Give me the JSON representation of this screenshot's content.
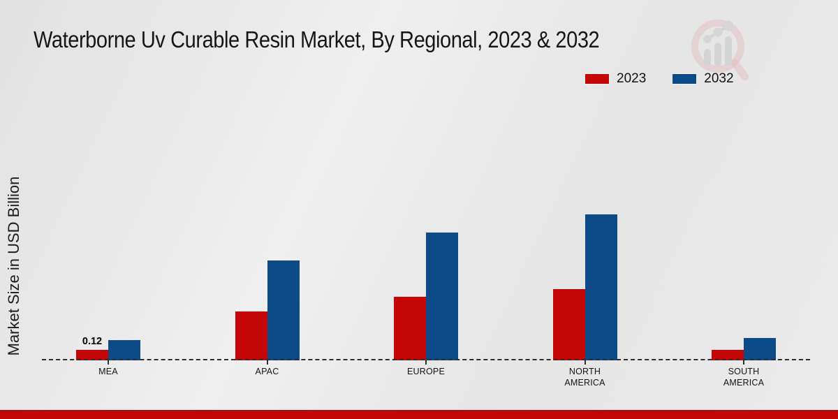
{
  "chart_data": {
    "type": "bar",
    "title": "Waterborne Uv Curable Resin Market, By Regional, 2023 & 2032",
    "ylabel": "Market Size in USD Billion",
    "xlabel": "",
    "categories": [
      "MEA",
      "APAC",
      "EUROPE",
      "NORTH AMERICA",
      "SOUTH AMERICA"
    ],
    "series": [
      {
        "name": "2023",
        "color": "#c40606",
        "values": [
          0.12,
          0.55,
          0.71,
          0.8,
          0.12
        ]
      },
      {
        "name": "2032",
        "color": "#0d4a88",
        "values": [
          0.23,
          1.12,
          1.43,
          1.63,
          0.25
        ]
      }
    ],
    "value_labels": [
      {
        "category_index": 0,
        "series_index": 0,
        "text": "0.12"
      }
    ],
    "ylim": [
      0,
      2.8
    ],
    "grid": false,
    "legend_position": "top-right",
    "baseline_style": "dashed"
  },
  "watermark": {
    "icon": "market-research-magnifier-logo"
  }
}
